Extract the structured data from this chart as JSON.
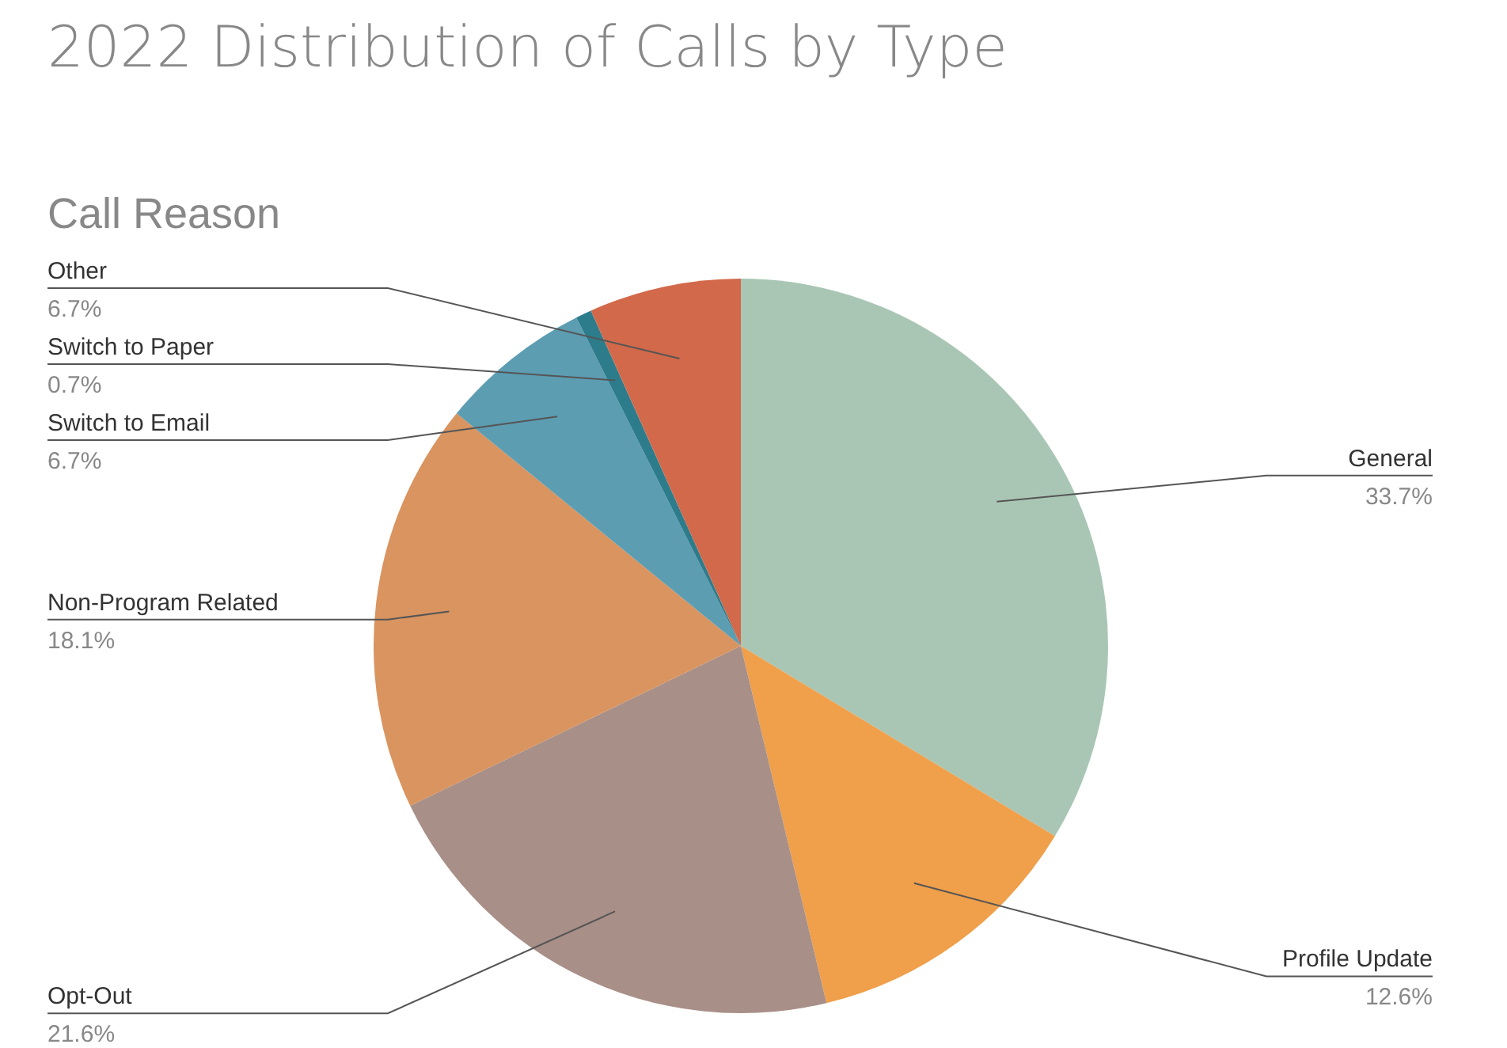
{
  "chart_data": {
    "type": "pie",
    "title": "2022 Distribution of Calls by Type",
    "subtitle": "Call Reason",
    "categories": [
      "General",
      "Profile Update",
      "Opt-Out",
      "Non-Program Related",
      "Switch to Email",
      "Switch to Paper",
      "Other"
    ],
    "values": [
      33.7,
      12.6,
      21.6,
      18.1,
      6.7,
      0.7,
      6.7
    ],
    "value_labels": [
      "33.7%",
      "12.6%",
      "21.6%",
      "18.1%",
      "6.7%",
      "0.7%",
      "6.7%"
    ],
    "colors": [
      "#a9c6b4",
      "#f09f4a",
      "#a88f87",
      "#d99460",
      "#5c9db2",
      "#2d7c8c",
      "#d2694a"
    ],
    "legend": false
  }
}
